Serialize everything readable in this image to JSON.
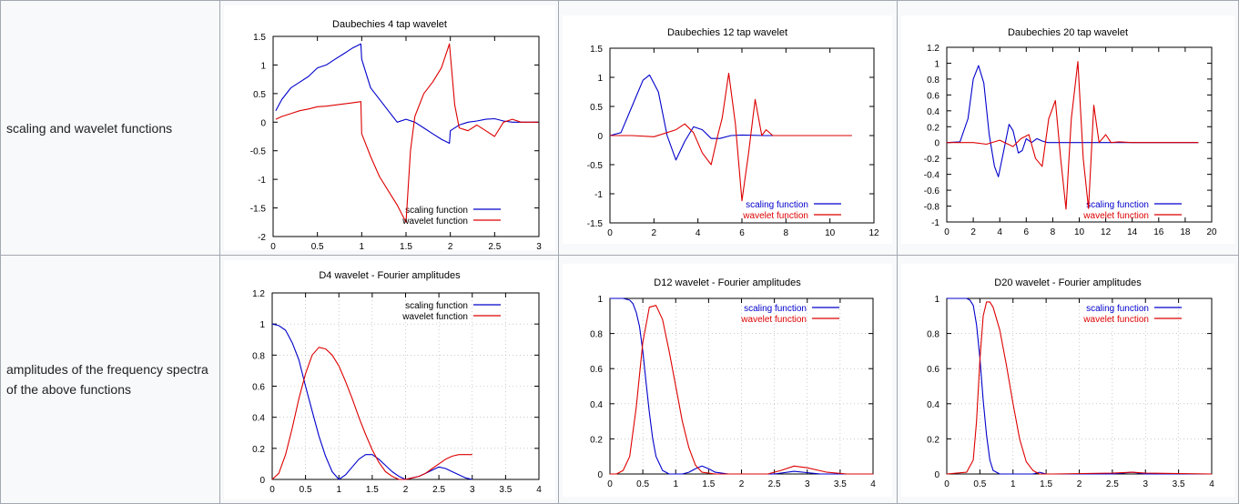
{
  "colors": {
    "scaling": "#0000cc",
    "wavelet": "#dd0000",
    "grid": "#aaaaaa",
    "border": "#a2a9b1",
    "cell_bg": "#f8f9fa"
  },
  "row_labels": {
    "row1": "scaling and wavelet functions",
    "row2_line1": "amplitudes of the frequency spectra",
    "row2_line2": "of the above functions"
  },
  "legend": {
    "scaling": "scaling function",
    "wavelet": "wavelet function"
  },
  "chart_data": [
    {
      "id": "d4-wavelet",
      "type": "line",
      "title": "Daubechies 4 tap wavelet",
      "xlim": [
        0,
        3
      ],
      "ylim": [
        -2,
        1.5
      ],
      "xticks": [
        0,
        0.5,
        1,
        1.5,
        2,
        2.5,
        3
      ],
      "xtick_labels": [
        "0",
        "0.5",
        "1",
        "1.5",
        "2",
        "2.5",
        "3"
      ],
      "yticks": [
        -2,
        -1.5,
        -1,
        -0.5,
        0,
        0.5,
        1,
        1.5
      ],
      "ytick_labels": [
        "-2",
        "-1.5",
        "-1",
        "-0.5",
        "0",
        "0.5",
        "1",
        "1.5"
      ],
      "grid": false,
      "legend": "bottom-right",
      "series": [
        {
          "name": "scaling function",
          "color": "#0000cc",
          "x": [
            0.03,
            0.1,
            0.2,
            0.3,
            0.4,
            0.5,
            0.6,
            0.7,
            0.8,
            0.9,
            0.99,
            1.0,
            1.1,
            1.2,
            1.3,
            1.4,
            1.5,
            1.6,
            1.7,
            1.8,
            1.9,
            1.99,
            2.0,
            2.1,
            2.2,
            2.3,
            2.4,
            2.5,
            2.6,
            2.7,
            2.8,
            2.9,
            2.99
          ],
          "y": [
            0.2,
            0.4,
            0.6,
            0.7,
            0.8,
            0.95,
            1.0,
            1.1,
            1.2,
            1.3,
            1.37,
            1.1,
            0.6,
            0.4,
            0.2,
            0.0,
            0.05,
            0.0,
            -0.1,
            -0.2,
            -0.3,
            -0.37,
            -0.15,
            -0.05,
            0.0,
            0.02,
            0.05,
            0.06,
            0.02,
            0.0,
            0.0,
            0.0,
            0.0
          ]
        },
        {
          "name": "wavelet function",
          "color": "#dd0000",
          "x": [
            0.03,
            0.1,
            0.2,
            0.3,
            0.4,
            0.5,
            0.6,
            0.7,
            0.8,
            0.9,
            0.99,
            1.0,
            1.1,
            1.2,
            1.3,
            1.4,
            1.5,
            1.55,
            1.6,
            1.7,
            1.8,
            1.9,
            1.99,
            2.05,
            2.1,
            2.2,
            2.3,
            2.4,
            2.5,
            2.6,
            2.7,
            2.8,
            2.9,
            2.99
          ],
          "y": [
            0.05,
            0.1,
            0.15,
            0.2,
            0.23,
            0.27,
            0.28,
            0.3,
            0.32,
            0.34,
            0.36,
            -0.2,
            -0.6,
            -0.95,
            -1.2,
            -1.45,
            -1.75,
            -0.5,
            0.1,
            0.5,
            0.7,
            0.95,
            1.37,
            0.3,
            -0.1,
            -0.15,
            -0.05,
            -0.15,
            -0.25,
            0.0,
            0.05,
            0.0,
            0.0,
            0.0
          ]
        }
      ]
    },
    {
      "id": "d12-wavelet",
      "type": "line",
      "title": "Daubechies 12 tap wavelet",
      "xlim": [
        0,
        12
      ],
      "ylim": [
        -1.5,
        1.5
      ],
      "xticks": [
        0,
        2,
        4,
        6,
        8,
        10,
        12
      ],
      "xtick_labels": [
        "0",
        "2",
        "4",
        "6",
        "8",
        "10",
        "12"
      ],
      "yticks": [
        -1.5,
        -1,
        -0.5,
        0,
        0.5,
        1,
        1.5
      ],
      "ytick_labels": [
        "-1.5",
        "-1",
        "-0.5",
        "0",
        "0.5",
        "1",
        "1.5"
      ],
      "grid": false,
      "legend": "bottom-right",
      "series": [
        {
          "name": "scaling function",
          "color": "#0000cc",
          "x": [
            0,
            0.5,
            1,
            1.5,
            1.8,
            2.2,
            2.6,
            3.0,
            3.4,
            3.8,
            4.2,
            4.6,
            5.0,
            5.5,
            6.0,
            7.0,
            8.0,
            11.0
          ],
          "y": [
            0,
            0.05,
            0.5,
            0.95,
            1.04,
            0.75,
            0.0,
            -0.42,
            -0.1,
            0.15,
            0.1,
            -0.05,
            -0.05,
            0.0,
            0.01,
            0.0,
            0.0,
            0.0
          ]
        },
        {
          "name": "wavelet function",
          "color": "#dd0000",
          "x": [
            0,
            1,
            2,
            3,
            3.4,
            3.8,
            4.2,
            4.6,
            4.9,
            5.1,
            5.4,
            5.7,
            6.0,
            6.3,
            6.6,
            6.9,
            7.1,
            7.4,
            8.0,
            11.0
          ],
          "y": [
            0,
            0.0,
            -0.02,
            0.1,
            0.2,
            0.05,
            -0.3,
            -0.5,
            0.0,
            0.3,
            1.07,
            0.2,
            -1.12,
            -0.3,
            0.62,
            0.0,
            0.1,
            0.0,
            0.0,
            0.0
          ]
        }
      ]
    },
    {
      "id": "d20-wavelet",
      "type": "line",
      "title": "Daubechies 20 tap wavelet",
      "xlim": [
        0,
        20
      ],
      "ylim": [
        -1,
        1.2
      ],
      "xticks": [
        0,
        2,
        4,
        6,
        8,
        10,
        12,
        14,
        16,
        18,
        20
      ],
      "xtick_labels": [
        "0",
        "2",
        "4",
        "6",
        "8",
        "10",
        "12",
        "14",
        "16",
        "18",
        "20"
      ],
      "yticks": [
        -1,
        -0.8,
        -0.6,
        -0.4,
        -0.2,
        0,
        0.2,
        0.4,
        0.6,
        0.8,
        1,
        1.2
      ],
      "ytick_labels": [
        "-1",
        "-0.8",
        "-0.6",
        "-0.4",
        "-0.2",
        "0",
        "0.2",
        "0.4",
        "0.6",
        "0.8",
        "1",
        "1.2"
      ],
      "grid": false,
      "legend": "bottom-right",
      "series": [
        {
          "name": "scaling function",
          "color": "#0000cc",
          "x": [
            0,
            1,
            1.6,
            2.0,
            2.4,
            2.8,
            3.2,
            3.6,
            3.9,
            4.3,
            4.7,
            5.0,
            5.4,
            5.7,
            6.0,
            6.4,
            6.8,
            7.2,
            7.6,
            8.0,
            9.0,
            10,
            12,
            19
          ],
          "y": [
            0,
            0.01,
            0.3,
            0.8,
            0.97,
            0.75,
            0.1,
            -0.3,
            -0.43,
            -0.1,
            0.23,
            0.15,
            -0.13,
            -0.1,
            0.05,
            0.0,
            0.05,
            0.02,
            0.0,
            0.0,
            0.0,
            0.0,
            0.0,
            0.0
          ]
        },
        {
          "name": "wavelet function",
          "color": "#dd0000",
          "x": [
            0,
            2,
            3,
            4,
            5,
            5.6,
            6.2,
            6.7,
            7.2,
            7.7,
            8.2,
            8.6,
            9.0,
            9.4,
            9.9,
            10.3,
            10.7,
            11.1,
            11.5,
            12.0,
            12.4,
            13.0,
            14,
            19
          ],
          "y": [
            0,
            0.0,
            -0.02,
            0.03,
            -0.05,
            0.05,
            0.1,
            -0.2,
            -0.3,
            0.3,
            0.53,
            -0.2,
            -0.84,
            0.3,
            1.02,
            -0.2,
            -0.83,
            0.47,
            0.0,
            0.1,
            0.0,
            0.01,
            0.0,
            0.0
          ]
        }
      ]
    },
    {
      "id": "d4-fourier",
      "type": "line",
      "title": "D4 wavelet - Fourier amplitudes",
      "xlim": [
        0,
        4
      ],
      "ylim": [
        0,
        1.2
      ],
      "xticks": [
        0,
        0.5,
        1,
        1.5,
        2,
        2.5,
        3,
        3.5,
        4
      ],
      "xtick_labels": [
        "0",
        "0.5",
        "1",
        "1.5",
        "2",
        "2.5",
        "3",
        "3.5",
        "4"
      ],
      "yticks": [
        0,
        0.2,
        0.4,
        0.6,
        0.8,
        1,
        1.2
      ],
      "ytick_labels": [
        "0",
        "0.2",
        "0.4",
        "0.6",
        "0.8",
        "1",
        "1.2"
      ],
      "grid": true,
      "legend": "top-right",
      "series": [
        {
          "name": "scaling function",
          "color": "#0000cc",
          "x": [
            0,
            0.1,
            0.2,
            0.3,
            0.4,
            0.5,
            0.6,
            0.7,
            0.8,
            0.9,
            1.0,
            1.1,
            1.2,
            1.3,
            1.4,
            1.5,
            1.6,
            1.7,
            1.8,
            1.9,
            2.0,
            2.1,
            2.2,
            2.3,
            2.4,
            2.5,
            2.6,
            2.7,
            2.8,
            2.9,
            3.0
          ],
          "y": [
            1.0,
            0.99,
            0.96,
            0.88,
            0.77,
            0.6,
            0.44,
            0.28,
            0.15,
            0.05,
            0.0,
            0.03,
            0.08,
            0.13,
            0.16,
            0.16,
            0.13,
            0.09,
            0.05,
            0.02,
            0.0,
            0.01,
            0.02,
            0.04,
            0.06,
            0.08,
            0.07,
            0.05,
            0.03,
            0.01,
            0.0
          ]
        },
        {
          "name": "wavelet function",
          "color": "#dd0000",
          "x": [
            0,
            0.1,
            0.2,
            0.3,
            0.4,
            0.5,
            0.6,
            0.7,
            0.8,
            0.9,
            1.0,
            1.1,
            1.2,
            1.3,
            1.4,
            1.5,
            1.6,
            1.7,
            1.8,
            1.9,
            2.0,
            2.1,
            2.2,
            2.3,
            2.4,
            2.5,
            2.6,
            2.7,
            2.8,
            2.9,
            3.0
          ],
          "y": [
            0.0,
            0.04,
            0.16,
            0.33,
            0.52,
            0.68,
            0.8,
            0.85,
            0.84,
            0.8,
            0.73,
            0.63,
            0.52,
            0.4,
            0.29,
            0.19,
            0.11,
            0.05,
            0.02,
            0.0,
            0.0,
            0.01,
            0.02,
            0.04,
            0.07,
            0.1,
            0.13,
            0.15,
            0.16,
            0.16,
            0.16
          ]
        }
      ]
    },
    {
      "id": "d12-fourier",
      "type": "line",
      "title": "D12 wavelet - Fourier amplitudes",
      "xlim": [
        0,
        4
      ],
      "ylim": [
        0,
        1
      ],
      "xticks": [
        0,
        0.5,
        1,
        1.5,
        2,
        2.5,
        3,
        3.5,
        4
      ],
      "xtick_labels": [
        "0",
        "0.5",
        "1",
        "1.5",
        "2",
        "2.5",
        "3",
        "3.5",
        "4"
      ],
      "yticks": [
        0,
        0.2,
        0.4,
        0.6,
        0.8,
        1
      ],
      "ytick_labels": [
        "0",
        "0.2",
        "0.4",
        "0.6",
        "0.8",
        "1"
      ],
      "grid": true,
      "legend": "top-right",
      "series": [
        {
          "name": "scaling function",
          "color": "#0000cc",
          "x": [
            0,
            0.2,
            0.3,
            0.35,
            0.4,
            0.45,
            0.5,
            0.55,
            0.6,
            0.65,
            0.7,
            0.8,
            0.9,
            1.0,
            1.1,
            1.2,
            1.3,
            1.4,
            1.5,
            1.6,
            1.8,
            2.5,
            2.8,
            3.2,
            4.0
          ],
          "y": [
            1.0,
            1.0,
            0.99,
            0.97,
            0.92,
            0.84,
            0.7,
            0.52,
            0.35,
            0.2,
            0.1,
            0.02,
            0.0,
            0.0,
            0.0,
            0.01,
            0.03,
            0.045,
            0.03,
            0.01,
            0.0,
            0.0,
            0.015,
            0.0,
            0.0
          ]
        },
        {
          "name": "wavelet function",
          "color": "#dd0000",
          "x": [
            0,
            0.1,
            0.2,
            0.3,
            0.4,
            0.5,
            0.6,
            0.7,
            0.8,
            0.9,
            1.0,
            1.1,
            1.2,
            1.3,
            1.4,
            1.6,
            2.0,
            2.4,
            2.6,
            2.8,
            3.0,
            3.3,
            3.6,
            4.0
          ],
          "y": [
            0.0,
            0.0,
            0.02,
            0.1,
            0.38,
            0.75,
            0.95,
            0.96,
            0.88,
            0.7,
            0.5,
            0.3,
            0.15,
            0.05,
            0.01,
            0.0,
            0.0,
            0.0,
            0.02,
            0.045,
            0.035,
            0.01,
            0.0,
            0.0
          ]
        }
      ]
    },
    {
      "id": "d20-fourier",
      "type": "line",
      "title": "D20 wavelet - Fourier amplitudes",
      "xlim": [
        0,
        4
      ],
      "ylim": [
        0,
        1
      ],
      "xticks": [
        0,
        0.5,
        1,
        1.5,
        2,
        2.5,
        3,
        3.5,
        4
      ],
      "xtick_labels": [
        "0",
        "0.5",
        "1",
        "1.5",
        "2",
        "2.5",
        "3",
        "3.5",
        "4"
      ],
      "yticks": [
        0,
        0.2,
        0.4,
        0.6,
        0.8,
        1
      ],
      "ytick_labels": [
        "0",
        "0.2",
        "0.4",
        "0.6",
        "0.8",
        "1"
      ],
      "grid": true,
      "legend": "top-right",
      "series": [
        {
          "name": "scaling function",
          "color": "#0000cc",
          "x": [
            0,
            0.3,
            0.35,
            0.4,
            0.45,
            0.5,
            0.55,
            0.6,
            0.65,
            0.7,
            0.8,
            0.9,
            1.0,
            1.3,
            1.4,
            1.5,
            2.5,
            2.8,
            3.0,
            4.0
          ],
          "y": [
            1.0,
            1.0,
            0.99,
            0.96,
            0.85,
            0.66,
            0.42,
            0.22,
            0.08,
            0.02,
            0.0,
            0.0,
            0.0,
            0.0,
            0.01,
            0.0,
            0.0,
            0.01,
            0.0,
            0.0
          ]
        },
        {
          "name": "wavelet function",
          "color": "#dd0000",
          "x": [
            0,
            0.3,
            0.4,
            0.45,
            0.5,
            0.55,
            0.6,
            0.65,
            0.7,
            0.8,
            0.9,
            1.0,
            1.1,
            1.2,
            1.3,
            1.4,
            1.6,
            2.5,
            2.8,
            3.0,
            4.0
          ],
          "y": [
            0.0,
            0.01,
            0.08,
            0.3,
            0.65,
            0.9,
            0.98,
            0.98,
            0.95,
            0.82,
            0.62,
            0.4,
            0.2,
            0.07,
            0.02,
            0.0,
            0.0,
            0.005,
            0.01,
            0.005,
            0.0
          ]
        }
      ]
    }
  ]
}
